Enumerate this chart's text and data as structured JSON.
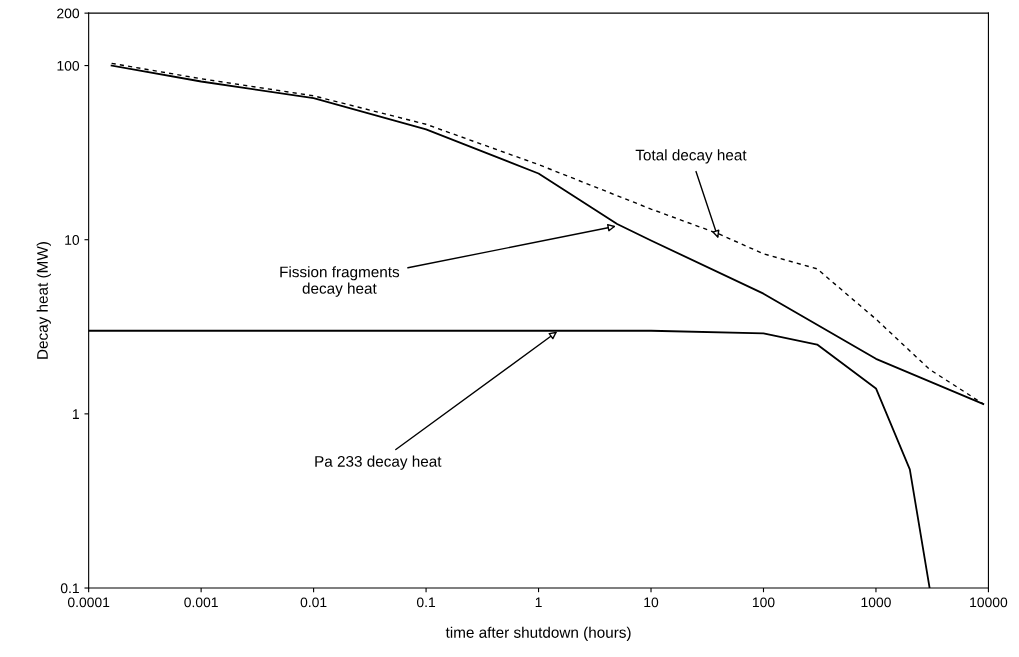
{
  "chart_data": {
    "type": "line",
    "xlabel": "time after shutdown (hours)",
    "ylabel": "Decay heat (MW)",
    "log": "xy",
    "grid": false,
    "legend": false,
    "marker": "none",
    "xlim": [
      0.0001,
      10000
    ],
    "xticks": [
      {
        "value": 0.0001,
        "label": "0.0001"
      },
      {
        "value": 0.001,
        "label": "0.001"
      },
      {
        "value": 0.01,
        "label": "0.01"
      },
      {
        "value": 0.1,
        "label": "0.1"
      },
      1,
      10,
      100,
      1000,
      10000
    ],
    "ylim": [
      0.1,
      200
    ],
    "yticks": [
      0.1,
      1,
      10,
      100,
      200
    ],
    "series": [
      {
        "color": "#000000",
        "line_style": "solid",
        "x": [
          0.00016,
          0.001,
          0.01,
          0.1,
          1,
          5,
          10,
          100,
          1000,
          9000
        ],
        "values": [
          100,
          81,
          65,
          43,
          24,
          12.3,
          9.9,
          4.9,
          2.07,
          1.14
        ]
      },
      {
        "color": "#000000",
        "line_style": "dashed",
        "x": [
          0.00016,
          0.001,
          0.01,
          0.1,
          1,
          10,
          40,
          100,
          300,
          1000,
          3000,
          9000
        ],
        "values": [
          103,
          84,
          67,
          46,
          27,
          15,
          10.8,
          8.3,
          6.8,
          3.5,
          1.8,
          1.14
        ]
      },
      {
        "color": "#000000",
        "line_style": "solid",
        "x": [
          0.0001,
          1,
          10,
          100,
          300,
          1000,
          2000,
          3000
        ],
        "values": [
          3.0,
          3.0,
          3.0,
          2.9,
          2.5,
          1.4,
          0.48,
          0.1
        ]
      }
    ],
    "annotations": [
      {
        "text": "Total decay heat",
        "x": 40,
        "y": 10
      },
      {
        "text": "Fission fragments\ndecay heat",
        "x": 5,
        "y": 12
      },
      {
        "text": "Pa 233 decay heat",
        "x": 1.5,
        "y": 3.0
      }
    ]
  }
}
